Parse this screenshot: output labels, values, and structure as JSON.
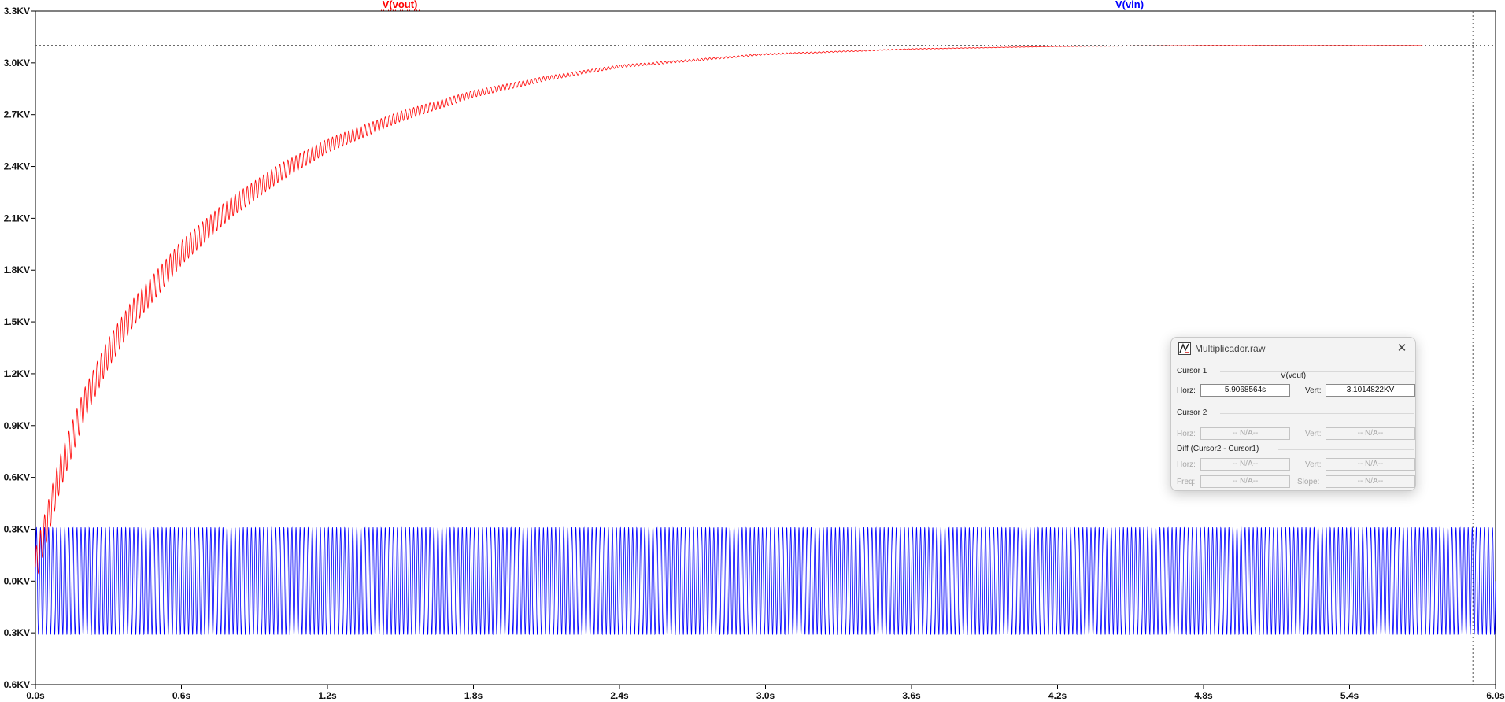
{
  "chart_data": {
    "type": "line",
    "xlabel": "",
    "ylabel": "",
    "xlim": [
      0.0,
      6.0
    ],
    "ylim": [
      -0.6,
      3.3
    ],
    "x_ticks": [
      "0.0s",
      "0.6s",
      "1.2s",
      "1.8s",
      "2.4s",
      "3.0s",
      "3.6s",
      "4.2s",
      "4.8s",
      "5.4s",
      "6.0s"
    ],
    "y_ticks": [
      "3.3KV",
      "3.0KV",
      "2.7KV",
      "2.4KV",
      "2.1KV",
      "1.8KV",
      "1.5KV",
      "1.2KV",
      "0.9KV",
      "0.6KV",
      "0.3KV",
      "0.0KV",
      "0.3KV",
      "0.6KV"
    ],
    "x_tick_values": [
      0,
      0.6,
      1.2,
      1.8,
      2.4,
      3.0,
      3.6,
      4.2,
      4.8,
      5.4,
      6.0
    ],
    "y_tick_values": [
      3.3,
      3.0,
      2.7,
      2.4,
      2.1,
      1.8,
      1.5,
      1.2,
      0.9,
      0.6,
      0.3,
      0.0,
      -0.3,
      -0.6
    ],
    "series": [
      {
        "name": "V(vout)",
        "color": "#ff0000",
        "x": [
          0.0,
          0.05,
          0.1,
          0.2,
          0.3,
          0.4,
          0.6,
          0.8,
          1.0,
          1.2,
          1.5,
          1.8,
          2.1,
          2.4,
          3.0,
          3.6,
          4.2,
          4.8,
          5.4,
          5.7
        ],
        "y": [
          0.08,
          0.35,
          0.62,
          1.02,
          1.32,
          1.55,
          1.9,
          2.16,
          2.36,
          2.52,
          2.69,
          2.82,
          2.91,
          2.98,
          3.05,
          3.08,
          3.095,
          3.1,
          3.1,
          3.1
        ],
        "ripple_amplitude": [
          0.1,
          0.1,
          0.1,
          0.09,
          0.085,
          0.08,
          0.07,
          0.06,
          0.05,
          0.04,
          0.03,
          0.02,
          0.013,
          0.008,
          0.004,
          0.002,
          0.001,
          0.0005,
          0.0003,
          0.0002
        ]
      },
      {
        "name": "V(vin)",
        "color": "#0000ff",
        "amplitude": 0.311,
        "frequency_hz": 60,
        "x_range": [
          0.0,
          6.0
        ]
      }
    ],
    "cursor": {
      "horizontal_level": 3.1014822,
      "vertical_time": 5.9068564
    },
    "grid": false,
    "legend": "top"
  },
  "colors": {
    "vout": "#ff0000",
    "vin": "#0000ff",
    "axis": "#000000",
    "cursor": "#555555"
  },
  "dialog": {
    "title": "Multiplicador.raw",
    "close_glyph": "✕",
    "app_icon": "ltspice-trace-icon",
    "cursor1": {
      "label": "Cursor 1",
      "trace": "V(vout)",
      "horz_label": "Horz:",
      "horz_value": "5.9068564s",
      "vert_label": "Vert:",
      "vert_value": "3.1014822KV"
    },
    "cursor2": {
      "label": "Cursor 2",
      "horz_label": "Horz:",
      "horz_value": "-- N/A--",
      "vert_label": "Vert:",
      "vert_value": "-- N/A--"
    },
    "diff": {
      "label": "Diff (Cursor2 - Cursor1)",
      "horz_label": "Horz:",
      "horz_value": "-- N/A--",
      "vert_label": "Vert:",
      "vert_value": "-- N/A--",
      "freq_label": "Freq:",
      "freq_value": "-- N/A--",
      "slope_label": "Slope:",
      "slope_value": "-- N/A--"
    }
  }
}
